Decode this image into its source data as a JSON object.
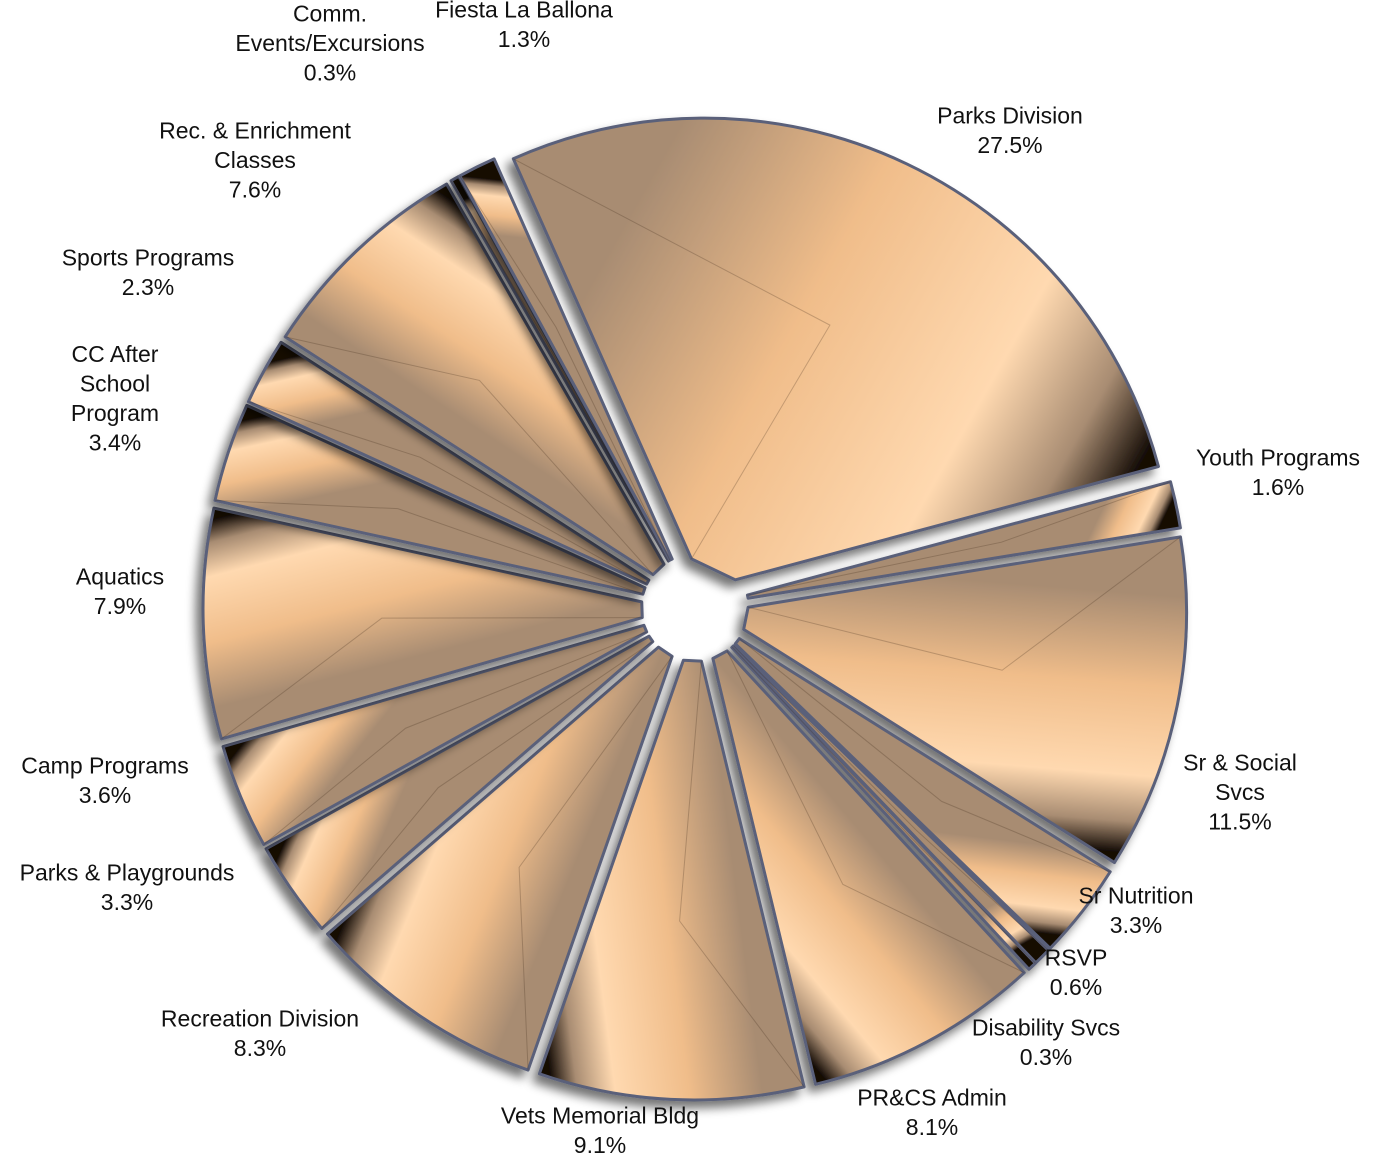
{
  "chart_data": {
    "type": "pie",
    "title": "",
    "legend": "none",
    "exploded": true,
    "colors": {
      "face_light": "#f0bd8a",
      "face_mid": "#a88c72",
      "face_dark": "#140c06",
      "face_highlight": "#ffd9b0",
      "edge": "#5a607a",
      "shadow": "#8a8a8a"
    },
    "slices": [
      {
        "label": "Parks Division",
        "lines": [
          "Parks Division"
        ],
        "value": 27.5,
        "pct_label": "27.5%"
      },
      {
        "label": "Youth Programs",
        "lines": [
          "Youth Programs"
        ],
        "value": 1.6,
        "pct_label": "1.6%"
      },
      {
        "label": "Sr & Social Svcs",
        "lines": [
          "Sr & Social",
          "Svcs"
        ],
        "value": 11.5,
        "pct_label": "11.5%"
      },
      {
        "label": "Sr Nutrition",
        "lines": [
          "Sr Nutrition"
        ],
        "value": 3.3,
        "pct_label": "3.3%"
      },
      {
        "label": "RSVP",
        "lines": [
          "RSVP"
        ],
        "value": 0.6,
        "pct_label": "0.6%"
      },
      {
        "label": "Disability Svcs",
        "lines": [
          "Disability Svcs"
        ],
        "value": 0.3,
        "pct_label": "0.3%"
      },
      {
        "label": "PR&CS Admin",
        "lines": [
          "PR&CS Admin"
        ],
        "value": 8.1,
        "pct_label": "8.1%"
      },
      {
        "label": "Vets Memorial Bldg",
        "lines": [
          "Vets Memorial Bldg"
        ],
        "value": 9.1,
        "pct_label": "9.1%"
      },
      {
        "label": "Recreation Division",
        "lines": [
          "Recreation Division"
        ],
        "value": 8.3,
        "pct_label": "8.3%"
      },
      {
        "label": "Parks & Playgrounds",
        "lines": [
          "Parks & Playgrounds"
        ],
        "value": 3.3,
        "pct_label": "3.3%"
      },
      {
        "label": "Camp Programs",
        "lines": [
          "Camp Programs"
        ],
        "value": 3.6,
        "pct_label": "3.6%"
      },
      {
        "label": "Aquatics",
        "lines": [
          "Aquatics"
        ],
        "value": 7.9,
        "pct_label": "7.9%"
      },
      {
        "label": "CC After School Program",
        "lines": [
          "CC After",
          "School",
          "Program"
        ],
        "value": 3.4,
        "pct_label": "3.4%"
      },
      {
        "label": "Sports Programs",
        "lines": [
          "Sports Programs"
        ],
        "value": 2.3,
        "pct_label": "2.3%"
      },
      {
        "label": "Rec. & Enrichment Classes",
        "lines": [
          "Rec. & Enrichment",
          "Classes"
        ],
        "value": 7.6,
        "pct_label": "7.6%"
      },
      {
        "label": "Comm. Events/Excursions",
        "lines": [
          "Comm.",
          "Events/Excursions"
        ],
        "value": 0.3,
        "pct_label": "0.3%"
      },
      {
        "label": "Fiesta La Ballona",
        "lines": [
          "Fiesta La Ballona"
        ],
        "value": 1.3,
        "pct_label": "1.3%"
      }
    ]
  }
}
